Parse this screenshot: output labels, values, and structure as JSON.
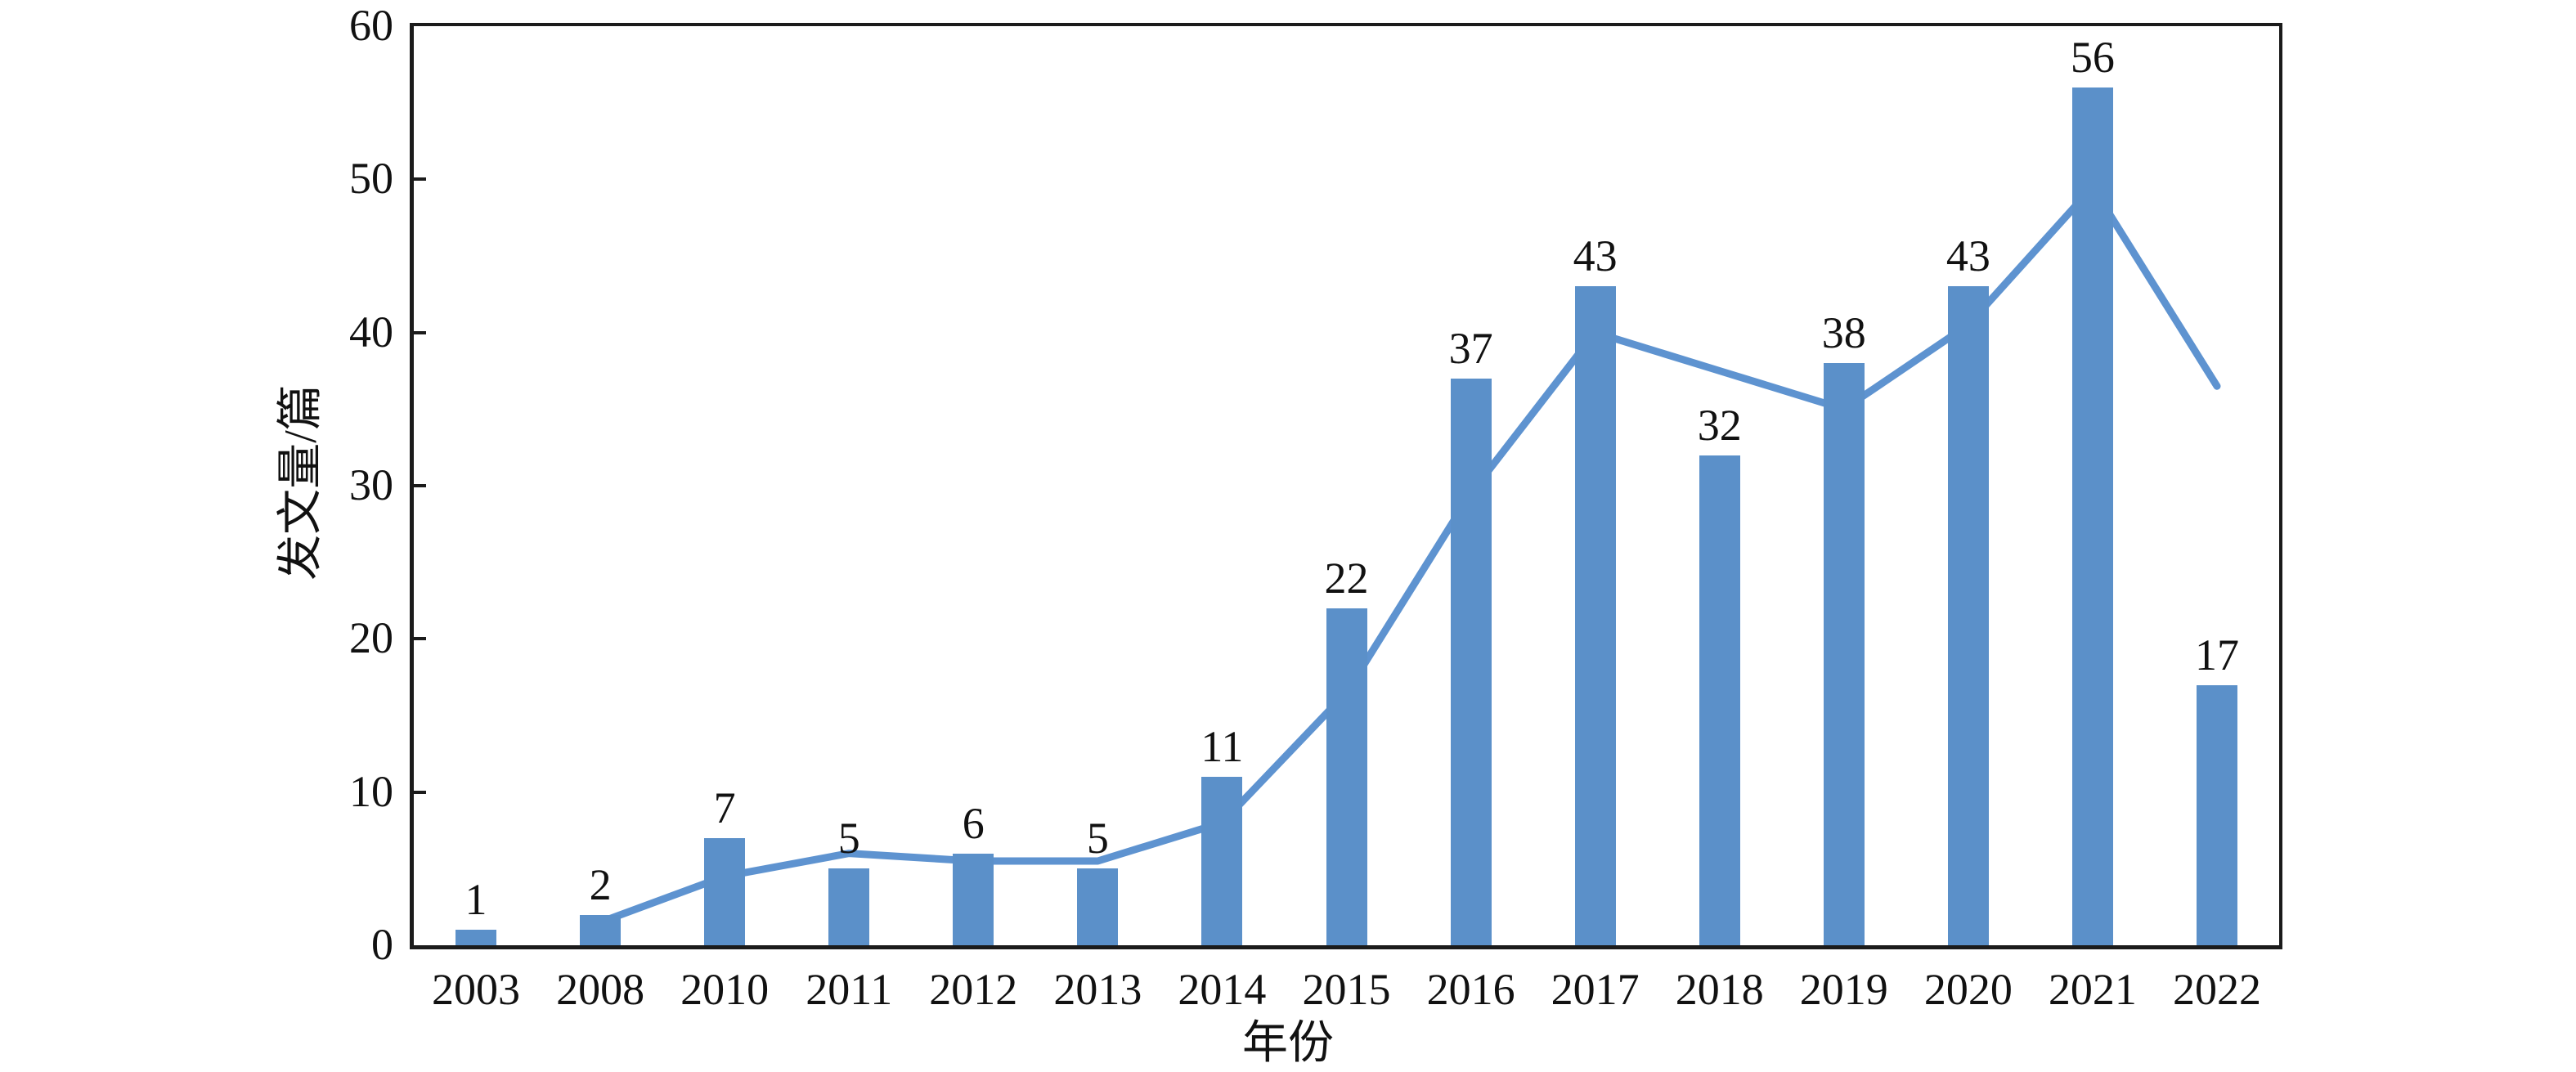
{
  "figure": {
    "background": "#ffffff",
    "text_color": "#111111",
    "axis_color": "#1b1b1b"
  },
  "chart_data": {
    "type": "bar",
    "title": "",
    "xlabel": "年份",
    "ylabel": "发文量/篇",
    "categories": [
      "2003",
      "2008",
      "2010",
      "2011",
      "2012",
      "2013",
      "2014",
      "2015",
      "2016",
      "2017",
      "2018",
      "2019",
      "2020",
      "2021",
      "2022"
    ],
    "series": [
      {
        "name": "bar-series",
        "type": "bar",
        "color": "#5B90C9",
        "values": [
          1,
          2,
          7,
          5,
          6,
          5,
          11,
          22,
          37,
          43,
          32,
          38,
          43,
          56,
          17
        ],
        "data_labels": [
          "1",
          "2",
          "7",
          "5",
          "6",
          "5",
          "11",
          "22",
          "37",
          "43",
          "32",
          "38",
          "43",
          "56",
          "17"
        ]
      },
      {
        "name": "line-series",
        "type": "line",
        "color": "#5E93D0",
        "values": [
          null,
          1.5,
          4.5,
          6,
          5.5,
          5.5,
          8,
          16.5,
          29.5,
          40,
          37.5,
          35,
          40.5,
          49.5,
          36.5
        ]
      }
    ],
    "ylim": [
      0,
      60
    ],
    "yticks": [
      0,
      10,
      20,
      30,
      40,
      50,
      60
    ],
    "grid": false,
    "legend": "none"
  }
}
